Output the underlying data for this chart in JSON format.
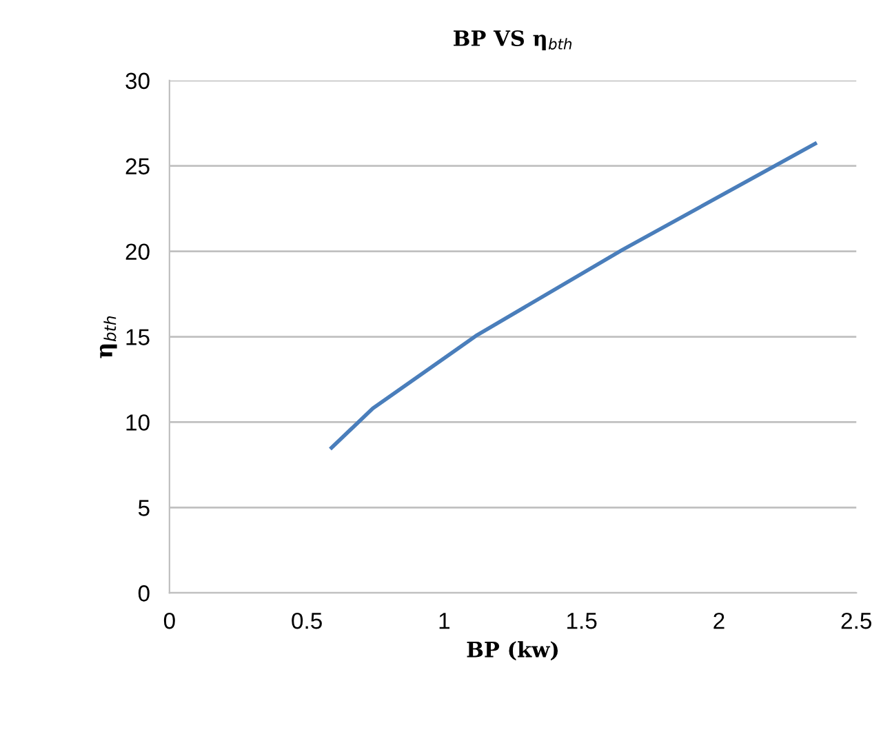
{
  "chart_data": {
    "type": "line",
    "title": "BP VS η$_{bth}$",
    "xlabel": "BP (kw)",
    "ylabel": "η$_{bth}$",
    "x": [
      0.59,
      0.74,
      1.12,
      1.65,
      2.35
    ],
    "series": [
      {
        "color": "#4a7ebb",
        "values": [
          8.5,
          10.8,
          15.1,
          20.1,
          26.3
        ]
      }
    ],
    "xlim": [
      0,
      2.5
    ],
    "xticks": [
      0,
      0.5,
      1,
      1.5,
      2,
      2.5
    ],
    "ylim": [
      0,
      30
    ],
    "yticks": [
      0,
      5,
      10,
      15,
      20,
      25,
      30
    ],
    "grid": "y",
    "legend": false,
    "marker": "none",
    "line_style": "solid"
  }
}
